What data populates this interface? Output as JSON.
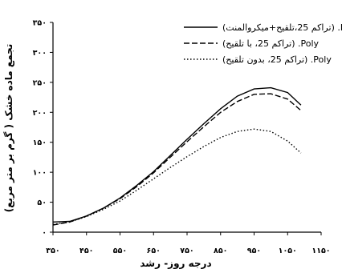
{
  "chart_data": {
    "type": "line",
    "xlabel": "درجه روز- رشد",
    "ylabel": "تجمع ماده خشک ( گرم بر متر مربع)",
    "xlim": [
      350,
      1150
    ],
    "ylim": [
      0,
      350
    ],
    "x_ticks": [
      350,
      450,
      550,
      650,
      750,
      850,
      950,
      1050,
      1150
    ],
    "x_tick_labels": [
      "۳۵۰",
      "۴۵۰",
      "۵۵۰",
      "۶۵۰",
      "۷۵۰",
      "۸۵۰",
      "۹۵۰",
      "۱۰۵۰",
      "۱۱۵۰"
    ],
    "y_ticks": [
      0,
      50,
      100,
      150,
      200,
      250,
      300,
      350
    ],
    "y_tick_labels": [
      "۰",
      "۵۰",
      "۱۰۰",
      "۱۵۰",
      "۲۰۰",
      "۲۵۰",
      "۳۰۰",
      "۳۵۰"
    ],
    "grid": false,
    "legend_position": "top-right",
    "series": [
      {
        "name": "(تراکم 25،تلقیح+میکروالمنت) .Poly",
        "style": "solid",
        "x": [
          350,
          400,
          450,
          500,
          550,
          600,
          650,
          700,
          750,
          800,
          850,
          900,
          950,
          1000,
          1050,
          1090
        ],
        "y": [
          17,
          18,
          27,
          40,
          57,
          78,
          101,
          128,
          155,
          181,
          206,
          227,
          239,
          241,
          233,
          212
        ]
      },
      {
        "name": "(تراکم 25، با تلقیح) .Poly",
        "style": "dashed",
        "x": [
          350,
          400,
          450,
          500,
          550,
          600,
          650,
          700,
          750,
          800,
          850,
          900,
          950,
          1000,
          1050,
          1090
        ],
        "y": [
          12,
          17,
          27,
          40,
          56,
          76,
          99,
          125,
          151,
          176,
          200,
          218,
          230,
          231,
          222,
          203
        ]
      },
      {
        "name": "(تراکم 25، بدون تلقیح) .Poly",
        "style": "dotted",
        "x": [
          350,
          400,
          450,
          500,
          550,
          600,
          650,
          700,
          750,
          800,
          850,
          900,
          950,
          1000,
          1050,
          1090
        ],
        "y": [
          13,
          17,
          26,
          38,
          52,
          70,
          89,
          108,
          126,
          143,
          158,
          168,
          172,
          168,
          152,
          132
        ]
      }
    ]
  }
}
